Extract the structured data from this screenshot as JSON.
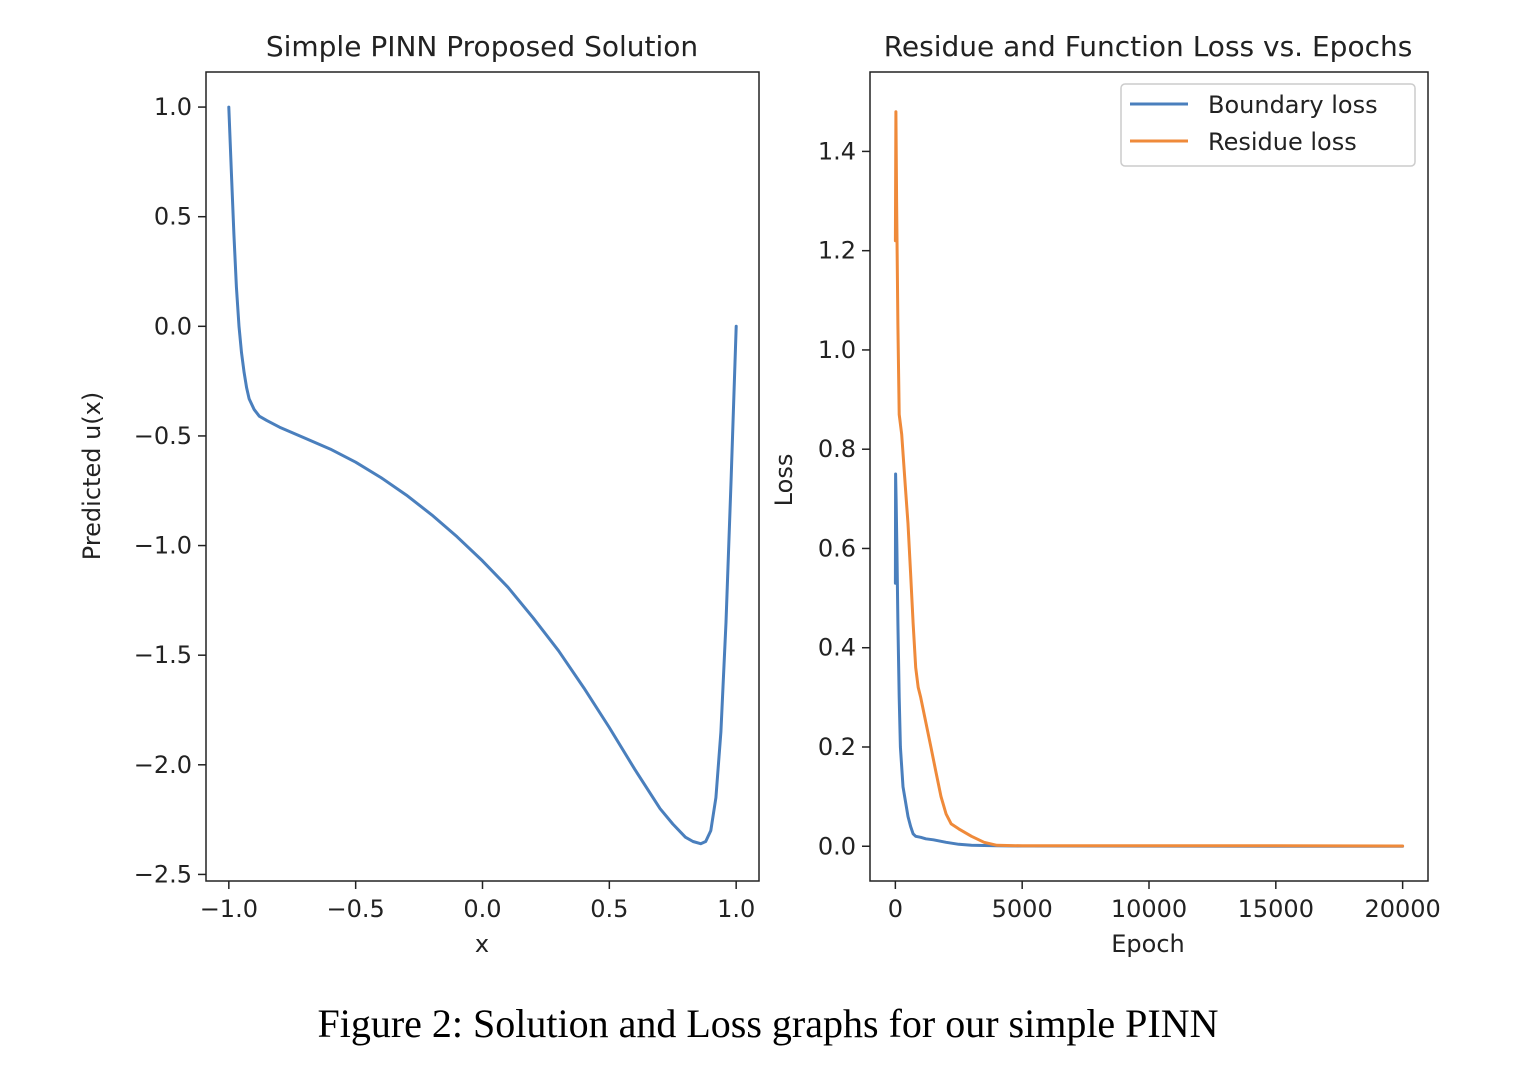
{
  "caption": "Figure 2: Solution and Loss graphs for our simple PINN",
  "chart_data": [
    {
      "type": "line",
      "title": "Simple PINN Proposed Solution",
      "xlabel": "x",
      "ylabel": "Predicted u(x)",
      "xlim": [
        -1.09,
        1.09
      ],
      "ylim": [
        -2.53,
        1.16
      ],
      "xticks": [
        -1.0,
        -0.5,
        0.0,
        0.5,
        1.0
      ],
      "xtick_labels": [
        "−1.0",
        "−0.5",
        "0.0",
        "0.5",
        "1.0"
      ],
      "yticks": [
        1.0,
        0.5,
        0.0,
        -0.5,
        -1.0,
        -1.5,
        -2.0,
        -2.5
      ],
      "ytick_labels": [
        "1.0",
        "0.5",
        "0.0",
        "−0.5",
        "−1.0",
        "−1.5",
        "−2.0",
        "−2.5"
      ],
      "grid": false,
      "series": [
        {
          "color": "#4a7fbd",
          "points": [
            [
              -1.0,
              1.0
            ],
            [
              -0.99,
              0.7
            ],
            [
              -0.98,
              0.42
            ],
            [
              -0.97,
              0.18
            ],
            [
              -0.96,
              0.0
            ],
            [
              -0.95,
              -0.12
            ],
            [
              -0.94,
              -0.21
            ],
            [
              -0.93,
              -0.28
            ],
            [
              -0.92,
              -0.33
            ],
            [
              -0.9,
              -0.38
            ],
            [
              -0.88,
              -0.41
            ],
            [
              -0.85,
              -0.43
            ],
            [
              -0.8,
              -0.46
            ],
            [
              -0.7,
              -0.51
            ],
            [
              -0.6,
              -0.56
            ],
            [
              -0.5,
              -0.62
            ],
            [
              -0.4,
              -0.69
            ],
            [
              -0.3,
              -0.77
            ],
            [
              -0.2,
              -0.86
            ],
            [
              -0.1,
              -0.96
            ],
            [
              0.0,
              -1.07
            ],
            [
              0.1,
              -1.19
            ],
            [
              0.2,
              -1.33
            ],
            [
              0.3,
              -1.48
            ],
            [
              0.4,
              -1.65
            ],
            [
              0.5,
              -1.83
            ],
            [
              0.6,
              -2.02
            ],
            [
              0.7,
              -2.2
            ],
            [
              0.75,
              -2.27
            ],
            [
              0.8,
              -2.33
            ],
            [
              0.83,
              -2.35
            ],
            [
              0.86,
              -2.36
            ],
            [
              0.88,
              -2.35
            ],
            [
              0.9,
              -2.3
            ],
            [
              0.92,
              -2.15
            ],
            [
              0.94,
              -1.85
            ],
            [
              0.96,
              -1.35
            ],
            [
              0.98,
              -0.7
            ],
            [
              1.0,
              0.0
            ]
          ]
        }
      ]
    },
    {
      "type": "line",
      "title": "Residue and Function Loss vs. Epochs",
      "xlabel": "Epoch",
      "ylabel": "Loss",
      "xlim": [
        -1000,
        21000
      ],
      "ylim": [
        -0.07,
        1.56
      ],
      "xticks": [
        0,
        5000,
        10000,
        15000,
        20000
      ],
      "xtick_labels": [
        "0",
        "5000",
        "10000",
        "15000",
        "20000"
      ],
      "yticks": [
        0.0,
        0.2,
        0.4,
        0.6,
        0.8,
        1.0,
        1.2,
        1.4
      ],
      "ytick_labels": [
        "0.0",
        "0.2",
        "0.4",
        "0.6",
        "0.8",
        "1.0",
        "1.2",
        "1.4"
      ],
      "grid": false,
      "legend": "top-right",
      "series": [
        {
          "name": "Boundary loss",
          "color": "#4a7fbd",
          "points": [
            [
              0,
              0.53
            ],
            [
              10,
              0.75
            ],
            [
              30,
              0.7
            ],
            [
              60,
              0.6
            ],
            [
              100,
              0.45
            ],
            [
              150,
              0.3
            ],
            [
              200,
              0.2
            ],
            [
              300,
              0.12
            ],
            [
              400,
              0.09
            ],
            [
              500,
              0.06
            ],
            [
              600,
              0.04
            ],
            [
              700,
              0.025
            ],
            [
              800,
              0.02
            ],
            [
              1000,
              0.018
            ],
            [
              1200,
              0.015
            ],
            [
              1500,
              0.013
            ],
            [
              2000,
              0.008
            ],
            [
              2500,
              0.004
            ],
            [
              3000,
              0.002
            ],
            [
              4000,
              0.001
            ],
            [
              5000,
              0.0005
            ],
            [
              10000,
              0.0003
            ],
            [
              15000,
              0.0002
            ],
            [
              20000,
              0.0002
            ]
          ]
        },
        {
          "name": "Residue loss",
          "color": "#ef8a3a",
          "points": [
            [
              0,
              1.22
            ],
            [
              20,
              1.48
            ],
            [
              50,
              1.3
            ],
            [
              100,
              1.05
            ],
            [
              150,
              0.87
            ],
            [
              250,
              0.83
            ],
            [
              400,
              0.72
            ],
            [
              500,
              0.65
            ],
            [
              600,
              0.55
            ],
            [
              700,
              0.45
            ],
            [
              800,
              0.36
            ],
            [
              900,
              0.32
            ],
            [
              1000,
              0.3
            ],
            [
              1200,
              0.25
            ],
            [
              1400,
              0.2
            ],
            [
              1600,
              0.15
            ],
            [
              1800,
              0.1
            ],
            [
              2000,
              0.065
            ],
            [
              2200,
              0.045
            ],
            [
              2500,
              0.035
            ],
            [
              3000,
              0.02
            ],
            [
              3500,
              0.008
            ],
            [
              4000,
              0.002
            ],
            [
              5000,
              0.001
            ],
            [
              10000,
              0.001
            ],
            [
              15000,
              0.001
            ],
            [
              20000,
              0.0005
            ]
          ]
        }
      ]
    }
  ]
}
